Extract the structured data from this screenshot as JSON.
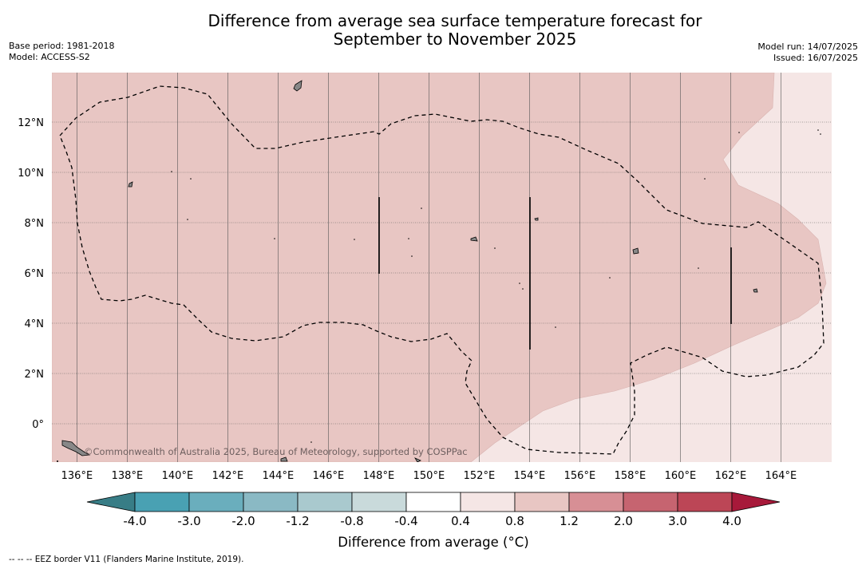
{
  "title_line1": "Difference from average sea surface temperature forecast for",
  "title_line2": "September to November 2025",
  "base_period": "Base period: 1981-2018",
  "model": "Model: ACCESS-S2",
  "model_run": "Model run: 14/07/2025",
  "issued": "Issued: 16/07/2025",
  "copyright": "©Commonwealth of Australia 2025, Bureau of Meteorology, supported by COSPPac",
  "footer_legend": "--  --  -- EEZ border V11 (Flanders Marine Institute, 2019).",
  "map": {
    "lon_labels": [
      "136°E",
      "138°E",
      "140°E",
      "142°E",
      "144°E",
      "146°E",
      "148°E",
      "150°E",
      "152°E",
      "154°E",
      "156°E",
      "158°E",
      "160°E",
      "162°E",
      "164°E"
    ],
    "lat_labels": [
      "12°N",
      "10°N",
      "8°N",
      "6°N",
      "4°N",
      "2°N",
      "0°"
    ],
    "lon_range": [
      135,
      166
    ],
    "lat_range": [
      -1.5,
      14
    ],
    "land_color": "#888888",
    "fill_colors": {
      "0.8_to_1.2": "#e8c6c3",
      "0.4_to_0.8": "#f5e6e5"
    }
  },
  "colorbar": {
    "title": "Difference from average (°C)",
    "ticks": [
      "-4.0",
      "-3.0",
      "-2.0",
      "-1.2",
      "-0.8",
      "-0.4",
      "0.4",
      "0.8",
      "1.2",
      "2.0",
      "3.0",
      "4.0"
    ],
    "colors": [
      "#49a1b3",
      "#6aaebd",
      "#8ab9c4",
      "#a9c9ce",
      "#c9dadb",
      "#ffffff",
      "#f5e6e5",
      "#e8c6c3",
      "#d78f95",
      "#c66470",
      "#bc4656"
    ],
    "under_color": "#387d86",
    "over_color": "#a7193a"
  }
}
